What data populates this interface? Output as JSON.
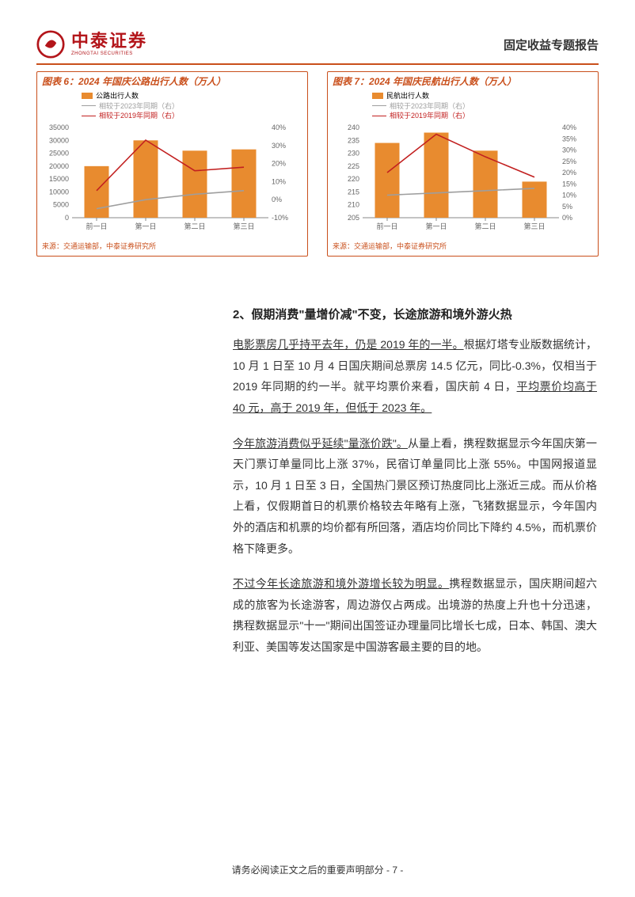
{
  "header": {
    "brand_cn": "中泰证券",
    "brand_en": "ZHONGTAI SECURITIES",
    "doc_type": "固定收益专题报告"
  },
  "chart_left": {
    "title": "图表 6：2024 年国庆公路出行人数（万人）",
    "type": "bar+line",
    "categories": [
      "前一日",
      "第一日",
      "第二日",
      "第三日"
    ],
    "bars": {
      "label": "公路出行人数",
      "values": [
        20000,
        30000,
        26000,
        26500
      ],
      "color": "#e88b2f"
    },
    "line1": {
      "label": "相较于2023年同期（右）",
      "values": [
        -5,
        0,
        3,
        5
      ],
      "color": "#9e9e9e"
    },
    "line2": {
      "label": "相较于2019年同期（右）",
      "values": [
        5,
        33,
        16,
        18
      ],
      "color": "#c22020"
    },
    "y_left": {
      "min": 0,
      "max": 35000,
      "step": 5000
    },
    "y_right": {
      "min": -10,
      "max": 40,
      "step": 10,
      "suffix": "%"
    },
    "source": "来源：交通运输部，中泰证券研究所",
    "bar_width": 0.5,
    "font_size": 9,
    "axis_color": "#888",
    "grid_color": "#cfcfcf",
    "background_color": "#ffffff"
  },
  "chart_right": {
    "title": "图表 7：2024 年国庆民航出行人数（万人）",
    "type": "bar+line",
    "categories": [
      "前一日",
      "第一日",
      "第二日",
      "第三日"
    ],
    "bars": {
      "label": "民航出行人数",
      "values": [
        234,
        238,
        231,
        219
      ],
      "color": "#e88b2f"
    },
    "line1": {
      "label": "相较于2023年同期（右）",
      "values": [
        10,
        11,
        12,
        13
      ],
      "color": "#9e9e9e"
    },
    "line2": {
      "label": "相较于2019年同期（右）",
      "values": [
        20,
        37,
        27,
        18
      ],
      "color": "#c22020"
    },
    "y_left": {
      "min": 205,
      "max": 240,
      "step": 5
    },
    "y_right": {
      "min": 0,
      "max": 40,
      "step": 5,
      "suffix": "%"
    },
    "source": "来源：交通运输部，中泰证券研究所",
    "bar_width": 0.5,
    "font_size": 9,
    "axis_color": "#888",
    "grid_color": "#cfcfcf",
    "background_color": "#ffffff"
  },
  "body": {
    "heading": "2、假期消费\"量增价减\"不变，长途旅游和境外游火热",
    "p1_a": "电影票房几乎持平去年，仍是 2019 年的一半。",
    "p1_b": "根据灯塔专业版数据统计，10 月 1 日至 10 月 4 日国庆期间总票房 14.5 亿元，同比-0.3%，仅相当于 2019 年同期的约一半。就平均票价来看，国庆前 4 日，",
    "p1_c": "平均票价均高于 40 元，高于 2019 年，但低于 2023 年。",
    "p2_a": "今年旅游消费似乎延续\"量涨价跌\"。",
    "p2_b": "从量上看，携程数据显示今年国庆第一天门票订单量同比上涨 37%，民宿订单量同比上涨 55%。中国网报道显示，10 月 1 日至 3 日，全国热门景区预订热度同比上涨近三成。而从价格上看，仅假期首日的机票价格较去年略有上涨，飞猪数据显示，今年国内外的酒店和机票的均价都有所回落，酒店均价同比下降约 4.5%，而机票价格下降更多。",
    "p3_a": "不过今年长途旅游和境外游增长较为明显。",
    "p3_b": "携程数据显示，国庆期间超六成的旅客为长途游客，周边游仅占两成。出境游的热度上升也十分迅速，携程数据显示\"十一\"期间出国签证办理量同比增长七成，日本、韩国、澳大利亚、美国等发达国家是中国游客最主要的目的地。"
  },
  "footer": "请务必阅读正文之后的重要声明部分 - 7 -"
}
